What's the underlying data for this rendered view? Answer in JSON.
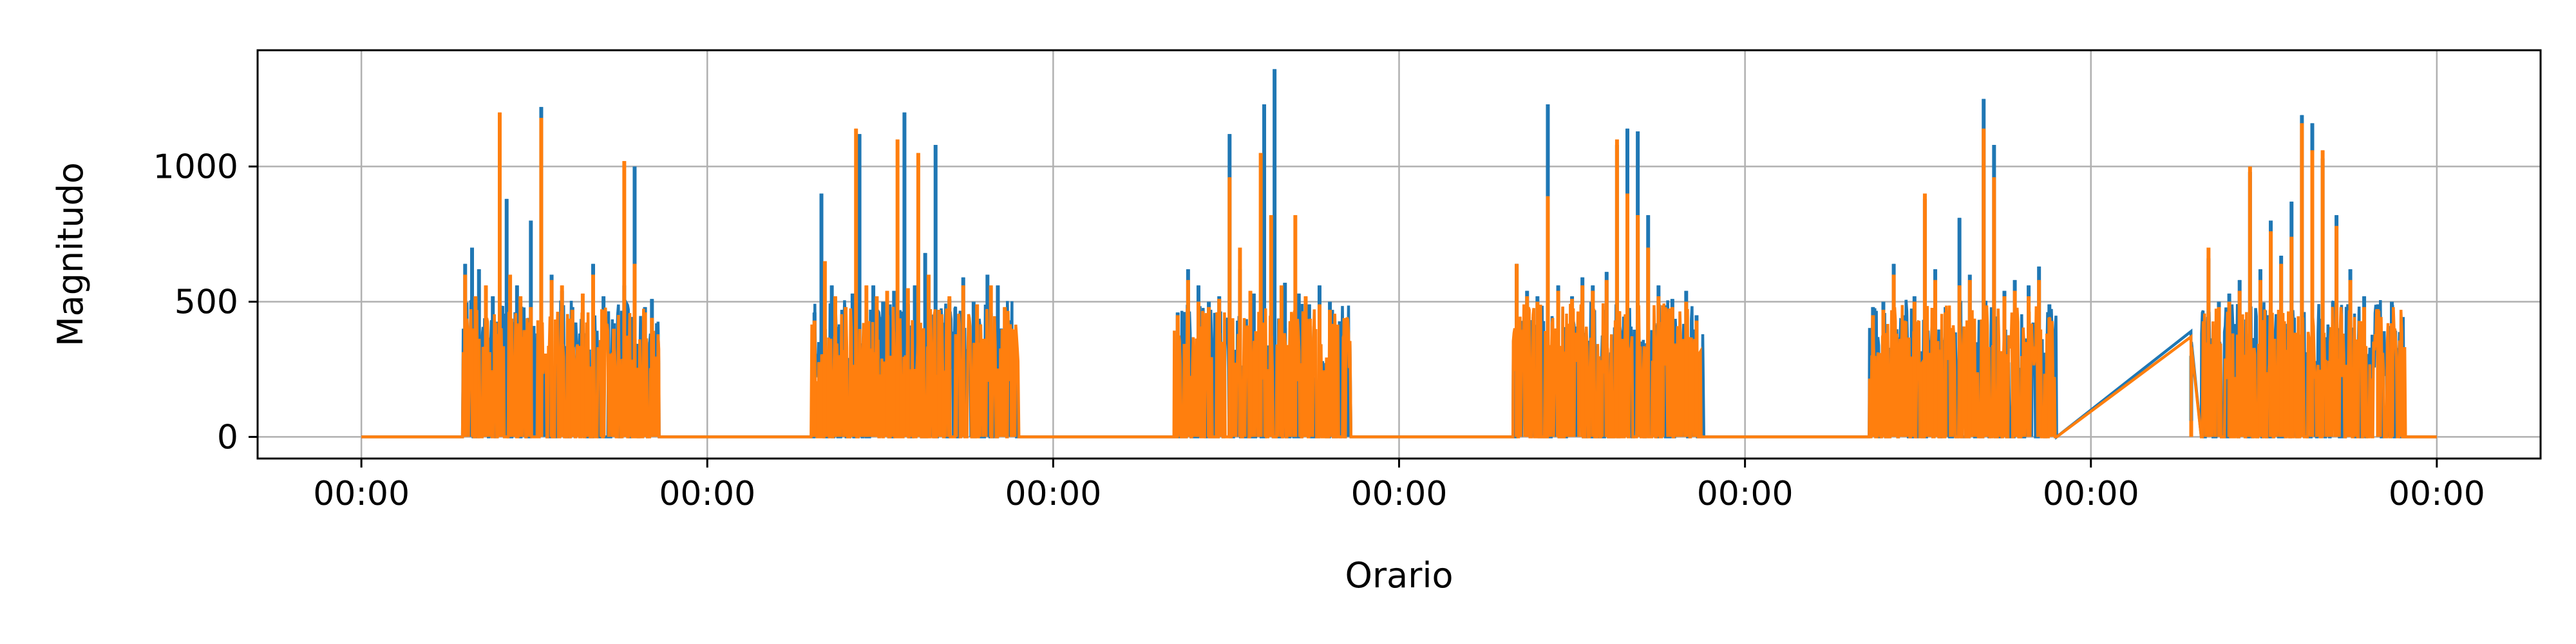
{
  "chart_data": {
    "type": "line",
    "title": "",
    "xlabel": "Orario",
    "ylabel": "Magnitudo",
    "grid": true,
    "x_unit": "day",
    "xlim": [
      -0.3,
      6.3
    ],
    "ylim": [
      -80,
      1430
    ],
    "yticks": [
      0,
      500,
      1000
    ],
    "ytick_labels": [
      "0",
      "500",
      "1000"
    ],
    "xticks": [
      0,
      1,
      2,
      3,
      4,
      5,
      6
    ],
    "xtick_labels": [
      "00:00",
      "00:00",
      "00:00",
      "00:00",
      "00:00",
      "00:00",
      "00:00"
    ],
    "series": [
      {
        "color": "#1f77b4",
        "days": [
          {
            "start": 0.29,
            "end": 0.86,
            "base": 390,
            "peaks": [
              [
                0.3,
                640
              ],
              [
                0.32,
                700
              ],
              [
                0.34,
                620
              ],
              [
                0.38,
                520
              ],
              [
                0.4,
                560
              ],
              [
                0.42,
                880
              ],
              [
                0.45,
                560
              ],
              [
                0.49,
                800
              ],
              [
                0.52,
                1220
              ],
              [
                0.55,
                600
              ],
              [
                0.58,
                540
              ],
              [
                0.61,
                480
              ],
              [
                0.64,
                470
              ],
              [
                0.67,
                640
              ],
              [
                0.7,
                520
              ],
              [
                0.73,
                420
              ],
              [
                0.76,
                560
              ],
              [
                0.79,
                1000
              ],
              [
                0.82,
                480
              ],
              [
                0.84,
                510
              ]
            ]
          },
          {
            "start": 1.3,
            "end": 1.9,
            "base": 390,
            "peaks": [
              [
                1.31,
                460
              ],
              [
                1.33,
                900
              ],
              [
                1.36,
                560
              ],
              [
                1.39,
                470
              ],
              [
                1.42,
                530
              ],
              [
                1.44,
                1120
              ],
              [
                1.48,
                560
              ],
              [
                1.51,
                500
              ],
              [
                1.54,
                540
              ],
              [
                1.57,
                1200
              ],
              [
                1.6,
                560
              ],
              [
                1.63,
                680
              ],
              [
                1.66,
                1080
              ],
              [
                1.7,
                510
              ],
              [
                1.74,
                590
              ],
              [
                1.77,
                500
              ],
              [
                1.81,
                600
              ],
              [
                1.84,
                560
              ],
              [
                1.88,
                400
              ]
            ]
          },
          {
            "start": 2.35,
            "end": 2.86,
            "base": 380,
            "peaks": [
              [
                2.36,
                460
              ],
              [
                2.39,
                620
              ],
              [
                2.42,
                560
              ],
              [
                2.45,
                500
              ],
              [
                2.48,
                520
              ],
              [
                2.51,
                1120
              ],
              [
                2.54,
                620
              ],
              [
                2.58,
                530
              ],
              [
                2.61,
                1230
              ],
              [
                2.64,
                1360
              ],
              [
                2.67,
                570
              ],
              [
                2.71,
                530
              ],
              [
                2.74,
                490
              ],
              [
                2.77,
                560
              ],
              [
                2.8,
                500
              ],
              [
                2.84,
                370
              ]
            ]
          },
          {
            "start": 3.33,
            "end": 3.88,
            "base": 390,
            "peaks": [
              [
                3.34,
                640
              ],
              [
                3.37,
                540
              ],
              [
                3.4,
                520
              ],
              [
                3.43,
                1230
              ],
              [
                3.46,
                560
              ],
              [
                3.5,
                520
              ],
              [
                3.53,
                590
              ],
              [
                3.56,
                560
              ],
              [
                3.6,
                610
              ],
              [
                3.63,
                1080
              ],
              [
                3.66,
                1140
              ],
              [
                3.69,
                1130
              ],
              [
                3.72,
                820
              ],
              [
                3.75,
                560
              ],
              [
                3.79,
                510
              ],
              [
                3.83,
                540
              ],
              [
                3.86,
                450
              ]
            ]
          },
          {
            "start": 4.36,
            "end": 4.9,
            "base": 390,
            "peaks": [
              [
                4.37,
                480
              ],
              [
                4.4,
                500
              ],
              [
                4.43,
                640
              ],
              [
                4.46,
                450
              ],
              [
                4.49,
                520
              ],
              [
                4.52,
                880
              ],
              [
                4.55,
                620
              ],
              [
                4.58,
                480
              ],
              [
                4.62,
                810
              ],
              [
                4.65,
                600
              ],
              [
                4.69,
                1250
              ],
              [
                4.72,
                1080
              ],
              [
                4.75,
                540
              ],
              [
                4.78,
                580
              ],
              [
                4.82,
                560
              ],
              [
                4.85,
                630
              ],
              [
                4.88,
                490
              ]
            ]
          },
          {
            "start": 5.32,
            "end": 5.91,
            "base": 390,
            "peaks": [
              [
                5.29,
                300
              ],
              [
                5.34,
                660
              ],
              [
                5.37,
                500
              ],
              [
                5.4,
                530
              ],
              [
                5.43,
                580
              ],
              [
                5.46,
                980
              ],
              [
                5.49,
                620
              ],
              [
                5.52,
                800
              ],
              [
                5.55,
                670
              ],
              [
                5.58,
                870
              ],
              [
                5.61,
                1190
              ],
              [
                5.64,
                1160
              ],
              [
                5.67,
                1030
              ],
              [
                5.71,
                820
              ],
              [
                5.75,
                620
              ],
              [
                5.79,
                520
              ],
              [
                5.83,
                490
              ],
              [
                5.87,
                500
              ]
            ]
          }
        ]
      },
      {
        "color": "#ff7f0e",
        "days": [
          {
            "start": 0.29,
            "end": 0.86,
            "base": 370,
            "peaks": [
              [
                0.3,
                600
              ],
              [
                0.33,
                520
              ],
              [
                0.36,
                560
              ],
              [
                0.4,
                1200
              ],
              [
                0.43,
                600
              ],
              [
                0.46,
                520
              ],
              [
                0.49,
                480
              ],
              [
                0.52,
                1180
              ],
              [
                0.55,
                580
              ],
              [
                0.58,
                560
              ],
              [
                0.61,
                470
              ],
              [
                0.64,
                530
              ],
              [
                0.67,
                600
              ],
              [
                0.7,
                470
              ],
              [
                0.73,
                400
              ],
              [
                0.76,
                1020
              ],
              [
                0.79,
                640
              ],
              [
                0.82,
                460
              ],
              [
                0.84,
                440
              ]
            ]
          },
          {
            "start": 1.3,
            "end": 1.9,
            "base": 370,
            "peaks": [
              [
                1.31,
                430
              ],
              [
                1.34,
                650
              ],
              [
                1.37,
                520
              ],
              [
                1.4,
                480
              ],
              [
                1.43,
                1140
              ],
              [
                1.46,
                560
              ],
              [
                1.49,
                520
              ],
              [
                1.52,
                540
              ],
              [
                1.55,
                1100
              ],
              [
                1.58,
                550
              ],
              [
                1.61,
                1050
              ],
              [
                1.64,
                600
              ],
              [
                1.67,
                470
              ],
              [
                1.7,
                520
              ],
              [
                1.74,
                560
              ],
              [
                1.78,
                490
              ],
              [
                1.82,
                560
              ],
              [
                1.86,
                480
              ],
              [
                1.88,
                400
              ]
            ]
          },
          {
            "start": 2.35,
            "end": 2.86,
            "base": 370,
            "peaks": [
              [
                2.36,
                450
              ],
              [
                2.39,
                580
              ],
              [
                2.42,
                500
              ],
              [
                2.45,
                480
              ],
              [
                2.48,
                510
              ],
              [
                2.51,
                960
              ],
              [
                2.54,
                700
              ],
              [
                2.57,
                540
              ],
              [
                2.6,
                1050
              ],
              [
                2.63,
                820
              ],
              [
                2.66,
                560
              ],
              [
                2.7,
                820
              ],
              [
                2.73,
                520
              ],
              [
                2.77,
                490
              ],
              [
                2.8,
                470
              ],
              [
                2.84,
                370
              ]
            ]
          },
          {
            "start": 3.33,
            "end": 3.88,
            "base": 380,
            "peaks": [
              [
                3.34,
                640
              ],
              [
                3.37,
                520
              ],
              [
                3.4,
                500
              ],
              [
                3.43,
                890
              ],
              [
                3.46,
                540
              ],
              [
                3.5,
                510
              ],
              [
                3.53,
                560
              ],
              [
                3.56,
                540
              ],
              [
                3.6,
                580
              ],
              [
                3.63,
                1100
              ],
              [
                3.66,
                900
              ],
              [
                3.69,
                820
              ],
              [
                3.72,
                700
              ],
              [
                3.75,
                520
              ],
              [
                3.79,
                480
              ],
              [
                3.83,
                500
              ],
              [
                3.86,
                430
              ]
            ]
          },
          {
            "start": 4.36,
            "end": 4.9,
            "base": 380,
            "peaks": [
              [
                4.37,
                450
              ],
              [
                4.4,
                470
              ],
              [
                4.43,
                600
              ],
              [
                4.46,
                430
              ],
              [
                4.49,
                500
              ],
              [
                4.52,
                900
              ],
              [
                4.55,
                580
              ],
              [
                4.58,
                460
              ],
              [
                4.62,
                560
              ],
              [
                4.65,
                580
              ],
              [
                4.69,
                1140
              ],
              [
                4.72,
                960
              ],
              [
                4.75,
                520
              ],
              [
                4.78,
                540
              ],
              [
                4.82,
                520
              ],
              [
                4.85,
                580
              ],
              [
                4.88,
                440
              ]
            ]
          },
          {
            "start": 5.32,
            "end": 5.91,
            "base": 370,
            "peaks": [
              [
                5.29,
                60
              ],
              [
                5.34,
                700
              ],
              [
                5.37,
                480
              ],
              [
                5.4,
                500
              ],
              [
                5.43,
                540
              ],
              [
                5.46,
                1000
              ],
              [
                5.49,
                580
              ],
              [
                5.52,
                760
              ],
              [
                5.55,
                640
              ],
              [
                5.58,
                740
              ],
              [
                5.61,
                1160
              ],
              [
                5.64,
                1060
              ],
              [
                5.67,
                1060
              ],
              [
                5.71,
                780
              ],
              [
                5.75,
                580
              ],
              [
                5.79,
                480
              ],
              [
                5.83,
                460
              ],
              [
                5.87,
                420
              ]
            ]
          }
        ]
      }
    ]
  }
}
